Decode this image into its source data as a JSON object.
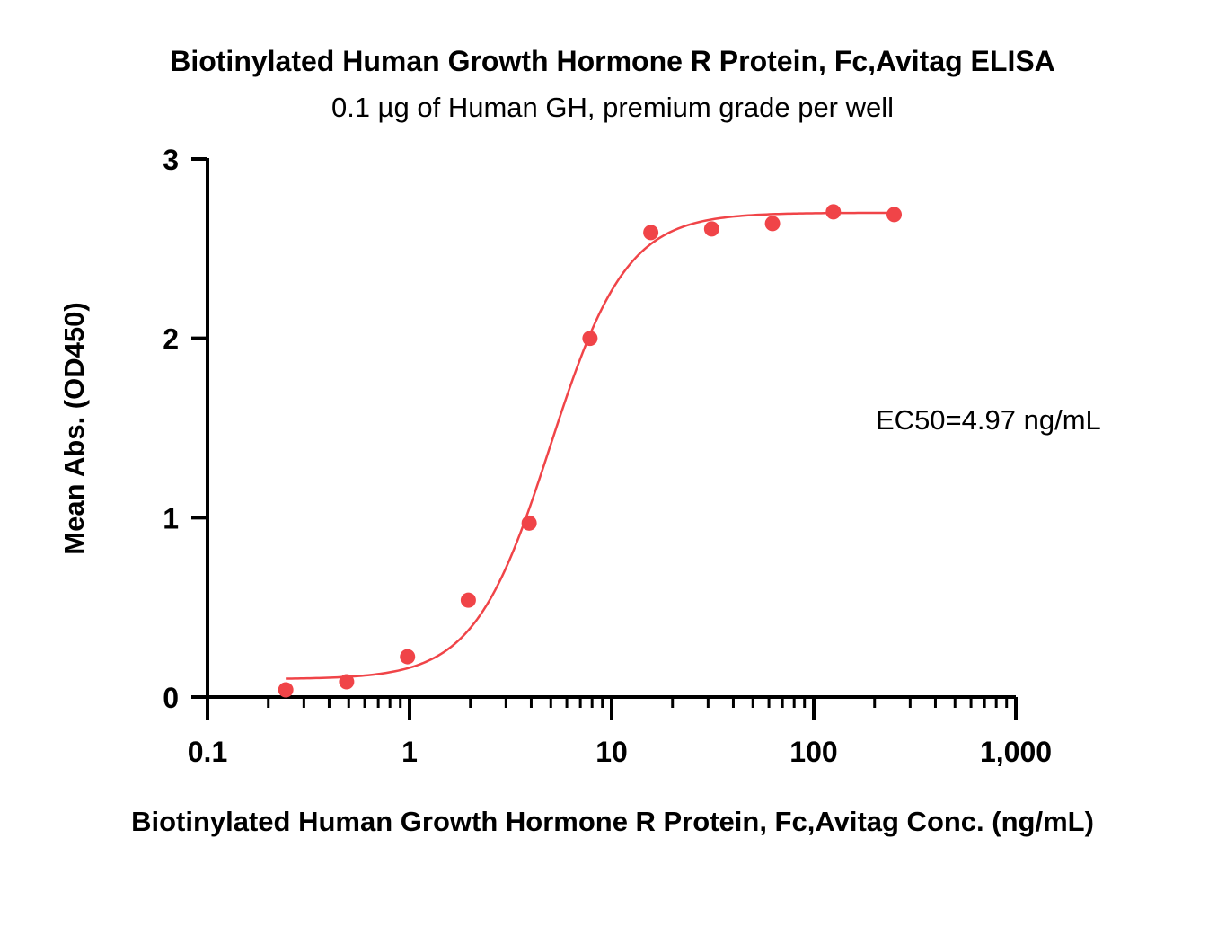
{
  "chart_data": {
    "type": "scatter",
    "title": "Biotinylated Human Growth Hormone R Protein, Fc,Avitag ELISA",
    "subtitle": "0.1 µg of Human GH, premium grade per well",
    "xlabel": "Biotinylated Human Growth Hormone R Protein, Fc,Avitag Conc. (ng/mL)",
    "ylabel": "Mean Abs. (OD450)",
    "xscale": "log",
    "xlim": [
      0.1,
      1000
    ],
    "ylim": [
      0,
      3
    ],
    "x_ticks": [
      0.1,
      1,
      10,
      100,
      1000
    ],
    "x_tick_labels": [
      "0.1",
      "1",
      "10",
      "100",
      "1,000"
    ],
    "y_ticks": [
      0,
      1,
      2,
      3
    ],
    "y_tick_labels": [
      "0",
      "1",
      "2",
      "3"
    ],
    "grid": false,
    "annotation": "EC50=4.97 ng/mL",
    "color": "#f04448",
    "series": [
      {
        "x": [
          0.244,
          0.488,
          0.977,
          1.953,
          3.906,
          7.813,
          15.625,
          31.25,
          62.5,
          125,
          250
        ],
        "y": [
          0.04,
          0.085,
          0.225,
          0.54,
          0.97,
          2.0,
          2.59,
          2.61,
          2.64,
          2.705,
          2.69
        ]
      }
    ],
    "fit": {
      "model": "4PL",
      "bottom": 0.1,
      "top": 2.7,
      "ec50": 4.97,
      "hill": 2.3
    }
  }
}
